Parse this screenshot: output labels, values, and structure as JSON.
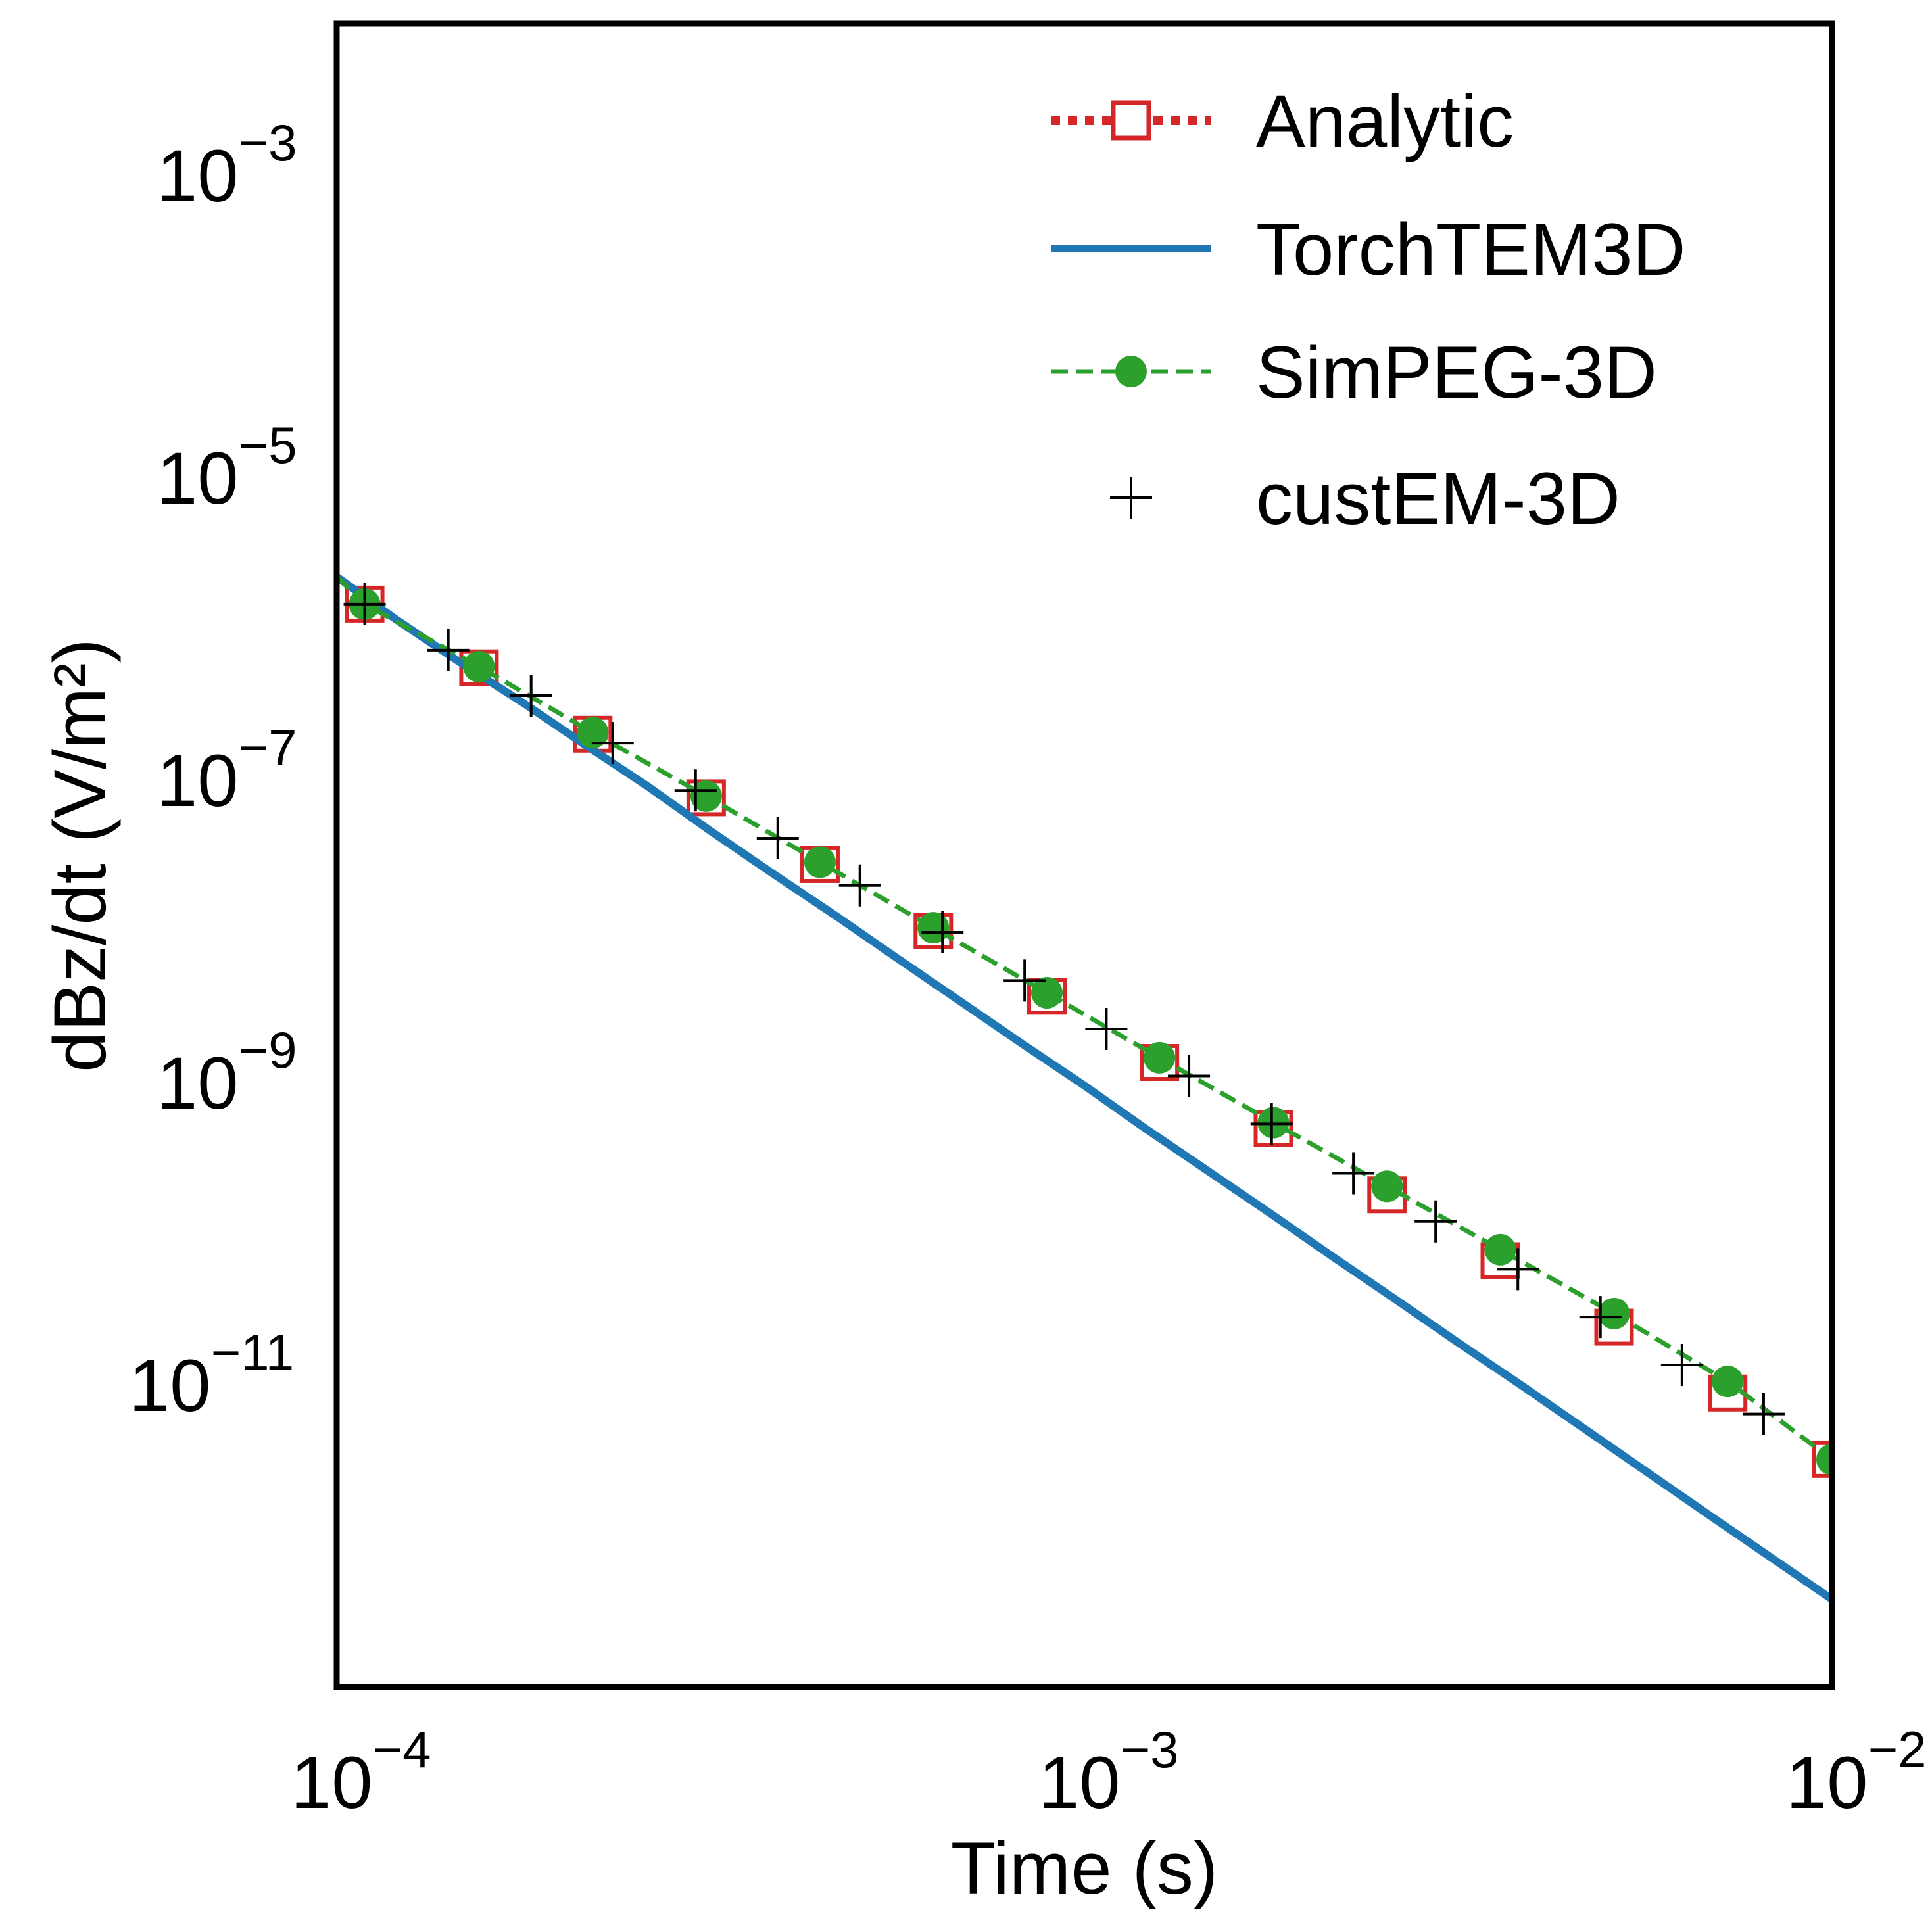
{
  "chart_data": {
    "type": "line",
    "title": "",
    "xlabel": "Time (s)",
    "ylabel": "dBz/dt (V/m²)",
    "xscale": "log",
    "yscale": "log",
    "xlim": [
      0.0001,
      0.01
    ],
    "ylim": [
      1e-13,
      0.01
    ],
    "x_ticks": [
      {
        "value": 0.0001,
        "base": "10",
        "exp": "−4"
      },
      {
        "value": 0.001,
        "base": "10",
        "exp": "−3"
      },
      {
        "value": 0.01,
        "base": "10",
        "exp": "−2"
      }
    ],
    "y_ticks": [
      {
        "value": 0.001,
        "base": "10",
        "exp": "−3"
      },
      {
        "value": 1e-05,
        "base": "10",
        "exp": "−5"
      },
      {
        "value": 1e-07,
        "base": "10",
        "exp": "−7"
      },
      {
        "value": 1e-09,
        "base": "10",
        "exp": "−9"
      },
      {
        "value": 1e-11,
        "base": "10",
        "exp": "−11"
      }
    ],
    "legend_position": "top-right",
    "series": [
      {
        "name": "Analytic",
        "style": "dotted-square",
        "color": "#d62728",
        "x": [
          0.0001,
          0.00012,
          0.000146,
          0.000178,
          0.000215,
          0.000261,
          0.000316,
          0.000383,
          0.000464,
          0.000562,
          0.000681,
          0.000825,
          0.001,
          0.00121,
          0.00147,
          0.00178,
          0.00215,
          0.00261,
          0.00316,
          0.00383,
          0.00464,
          0.00562,
          0.00681,
          0.00825,
          0.01
        ],
        "y": [
          2.2e-06,
          1.15e-06,
          6e-07,
          3.2e-07,
          1.7e-07,
          9e-08,
          4.6e-08,
          2.4e-08,
          1.27e-08,
          6.6e-09,
          3.45e-09,
          1.8e-09,
          9.5e-10,
          4.9e-10,
          2.55e-10,
          1.34e-10,
          7e-11,
          3.65e-11,
          1.9e-11,
          1e-11,
          5.2e-12,
          2.7e-12,
          1.4e-12,
          7.3e-13,
          3.8e-13
        ],
        "marker_x": [
          0.000109,
          0.000155,
          0.00022,
          0.000312,
          0.000443,
          0.000628,
          0.000891,
          0.00126,
          0.00179,
          0.00254,
          0.0036,
          0.00511,
          0.00725,
          0.01
        ],
        "marker_y": [
          1.45e-06,
          5.5e-07,
          2e-07,
          7.6e-08,
          2.75e-08,
          1e-08,
          3.7e-09,
          1.35e-09,
          4.95e-10,
          1.8e-10,
          6.6e-11,
          2.4e-11,
          8.8e-12,
          3.2e-12
        ]
      },
      {
        "name": "TorchTEM3D",
        "style": "solid",
        "color": "#1f77b4",
        "x": [
          0.0001,
          0.00012,
          0.000146,
          0.000178,
          0.000215,
          0.000261,
          0.000316,
          0.000383,
          0.000464,
          0.000562,
          0.000681,
          0.000825,
          0.001,
          0.00121,
          0.00147,
          0.00178,
          0.00215,
          0.00261,
          0.00316,
          0.00383,
          0.00464,
          0.00562,
          0.00681,
          0.00825,
          0.01
        ],
        "y": [
          2.2e-06,
          1.15e-06,
          6e-07,
          3.2e-07,
          1.7e-07,
          9e-08,
          4.6e-08,
          2.4e-08,
          1.27e-08,
          6.6e-09,
          3.45e-09,
          1.8e-09,
          9.5e-10,
          4.9e-10,
          2.55e-10,
          1.34e-10,
          7e-11,
          3.65e-11,
          1.9e-11,
          1e-11,
          5.2e-12,
          2.7e-12,
          1.4e-12,
          7.3e-13,
          3.8e-13
        ]
      },
      {
        "name": "SimPEG-3D",
        "style": "dashed-circle",
        "color": "#2ca02c",
        "x": [
          0.0001,
          0.000109,
          0.000155,
          0.00022,
          0.000312,
          0.000443,
          0.000628,
          0.000891,
          0.00126,
          0.00179,
          0.00254,
          0.0036,
          0.00511,
          0.00725,
          0.01
        ],
        "y": [
          2.2e-06,
          1.45e-06,
          5.6e-07,
          2.05e-07,
          7.8e-08,
          2.85e-08,
          1.05e-08,
          3.9e-09,
          1.45e-09,
          5.4e-10,
          2.05e-10,
          7.8e-11,
          2.95e-11,
          1.05e-11,
          3.2e-12
        ]
      },
      {
        "name": "custEM-3D",
        "style": "plus",
        "color": "#000000",
        "x": [
          0.000109,
          0.000141,
          0.000182,
          0.000234,
          0.000302,
          0.000389,
          0.000501,
          0.000646,
          0.000832,
          0.00107,
          0.00138,
          0.00178,
          0.00229,
          0.00295,
          0.0038,
          0.0049,
          0.0063,
          0.0081
        ],
        "y": [
          1.45e-06,
          7.2e-07,
          3.6e-07,
          1.75e-07,
          8.5e-08,
          4.1e-08,
          2e-08,
          9.8e-09,
          4.7e-09,
          2.25e-09,
          1.1e-09,
          5.3e-10,
          2.5e-10,
          1.2e-10,
          5.8e-11,
          2.8e-11,
          1.35e-11,
          6.4e-12
        ]
      }
    ]
  }
}
